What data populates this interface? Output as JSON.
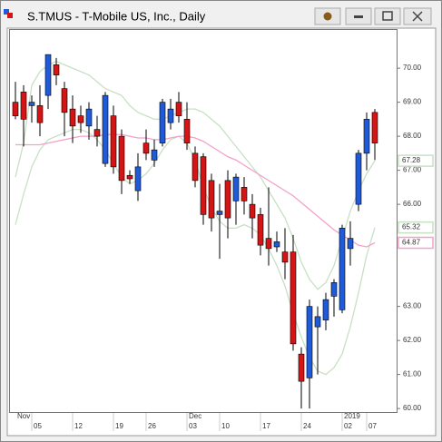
{
  "chart_data": {
    "type": "candlestick",
    "title": "S.TMUS - T-Mobile US, Inc., Daily",
    "categories": [
      null,
      null,
      "05",
      null,
      null,
      null,
      null,
      "12",
      null,
      null,
      null,
      null,
      "19",
      null,
      null,
      null,
      "26",
      null,
      null,
      null,
      null,
      "03",
      null,
      null,
      null,
      "10",
      null,
      null,
      null,
      null,
      "17",
      null,
      null,
      null,
      null,
      "24",
      null,
      null,
      null,
      null,
      "02",
      null,
      null,
      "07",
      null
    ],
    "upper_categories": [
      "Nov",
      null,
      null,
      null,
      null,
      null,
      null,
      null,
      null,
      null,
      null,
      null,
      null,
      null,
      null,
      null,
      null,
      null,
      null,
      null,
      null,
      "Dec",
      null,
      null,
      null,
      null,
      null,
      null,
      null,
      null,
      null,
      null,
      null,
      null,
      null,
      null,
      null,
      null,
      null,
      null,
      "2019",
      null,
      null,
      null,
      null
    ],
    "open": [
      69.0,
      69.3,
      68.9,
      68.9,
      69.2,
      70.1,
      69.4,
      68.8,
      68.6,
      68.3,
      68.2,
      67.2,
      68.6,
      68.0,
      66.85,
      66.4,
      67.8,
      67.3,
      67.8,
      68.4,
      69.0,
      68.5,
      67.5,
      67.4,
      66.7,
      65.7,
      66.7,
      66.1,
      66.5,
      66.0,
      65.7,
      65.0,
      64.75,
      64.6,
      64.6,
      61.6,
      60.9,
      62.4,
      62.6,
      63.3,
      62.9,
      64.7,
      66.0,
      67.5,
      68.7
    ],
    "high": [
      69.6,
      69.5,
      69.2,
      69.5,
      70.4,
      70.3,
      69.6,
      69.2,
      68.9,
      69.0,
      68.6,
      69.3,
      68.9,
      68.2,
      67.0,
      67.5,
      68.2,
      67.9,
      69.1,
      69.1,
      69.3,
      69.0,
      67.7,
      67.5,
      66.9,
      66.6,
      67.0,
      66.9,
      66.8,
      66.3,
      65.9,
      66.5,
      65.2,
      65.3,
      65.1,
      61.8,
      63.2,
      63.0,
      63.4,
      63.8,
      65.4,
      65.5,
      67.6,
      68.7,
      68.8
    ],
    "low": [
      68.5,
      67.7,
      68.4,
      68.0,
      68.8,
      69.5,
      68.0,
      67.8,
      68.1,
      67.9,
      67.7,
      67.1,
      66.9,
      66.3,
      66.6,
      66.1,
      67.3,
      67.1,
      67.7,
      68.2,
      68.4,
      67.6,
      66.5,
      65.4,
      65.2,
      64.4,
      65.0,
      65.4,
      65.7,
      65.0,
      64.5,
      64.2,
      64.6,
      63.8,
      61.7,
      60.0,
      60.0,
      61.0,
      62.3,
      62.7,
      62.8,
      64.2,
      65.8,
      67.0,
      67.3
    ],
    "close": [
      68.6,
      68.5,
      69.0,
      68.4,
      70.4,
      69.8,
      68.7,
      68.3,
      68.4,
      68.8,
      68.0,
      69.2,
      67.1,
      66.7,
      66.75,
      67.1,
      67.5,
      67.6,
      69.0,
      68.8,
      68.6,
      67.8,
      66.7,
      65.7,
      65.6,
      65.8,
      65.6,
      66.8,
      66.1,
      65.6,
      64.8,
      64.7,
      64.9,
      64.3,
      61.9,
      60.8,
      63.0,
      62.7,
      63.2,
      63.7,
      65.3,
      65.0,
      67.5,
      68.5,
      67.8
    ],
    "up_color": "#1f5bd8",
    "down_color": "#d51515",
    "overlays": [
      {
        "color": "#c8e0c4",
        "values": [
          66.8,
          67.8,
          69.5,
          69.9,
          70.1,
          70.2,
          70.1,
          70.0,
          69.9,
          69.8,
          69.6,
          69.4,
          69.3,
          69.2,
          68.9,
          68.7,
          68.6,
          68.5,
          68.5,
          68.6,
          68.7,
          68.8,
          68.8,
          68.7,
          68.5,
          68.3,
          68.0,
          67.7,
          67.4,
          67.1,
          66.8,
          66.4,
          66.0,
          65.6,
          65.0,
          64.3,
          63.8,
          63.5,
          63.7,
          64.2,
          65.0,
          65.8,
          66.4,
          66.9,
          67.28
        ]
      },
      {
        "color": "#c8e0c4",
        "values": [
          65.4,
          66.3,
          67.1,
          67.6,
          67.9,
          68.0,
          68.1,
          68.2,
          68.2,
          68.1,
          67.9,
          67.6,
          67.2,
          66.8,
          66.6,
          66.7,
          66.9,
          67.2,
          67.6,
          67.9,
          68.0,
          67.8,
          67.3,
          66.5,
          65.9,
          65.5,
          65.3,
          65.3,
          65.4,
          65.3,
          65.1,
          64.7,
          64.2,
          63.6,
          62.8,
          62.1,
          61.5,
          61.1,
          61.0,
          61.2,
          61.6,
          62.4,
          63.4,
          64.5,
          65.32
        ]
      },
      {
        "color": "#f4a0c8",
        "values": [
          67.75,
          67.75,
          67.75,
          67.75,
          67.8,
          67.85,
          67.9,
          67.95,
          68.0,
          68.0,
          68.0,
          68.05,
          68.05,
          68.05,
          68.0,
          67.95,
          67.95,
          67.9,
          67.9,
          67.95,
          68.0,
          68.0,
          67.95,
          67.85,
          67.7,
          67.55,
          67.4,
          67.3,
          67.15,
          67.0,
          66.85,
          66.7,
          66.55,
          66.4,
          66.25,
          66.05,
          65.85,
          65.65,
          65.45,
          65.25,
          65.1,
          64.95,
          64.8,
          64.75,
          64.87
        ]
      }
    ],
    "ylim": [
      59.87,
      71.15
    ],
    "yticks": [
      {
        "value": 60,
        "label": "60.00"
      },
      {
        "value": 61,
        "label": "61.00"
      },
      {
        "value": 62,
        "label": "62.00"
      },
      {
        "value": 63,
        "label": "63.00"
      },
      {
        "value": 66,
        "label": "66.00"
      },
      {
        "value": 67,
        "label": "67.00"
      },
      {
        "value": 68,
        "label": "68.00"
      },
      {
        "value": 69,
        "label": "69.00"
      },
      {
        "value": 70,
        "label": "70.00"
      }
    ]
  }
}
